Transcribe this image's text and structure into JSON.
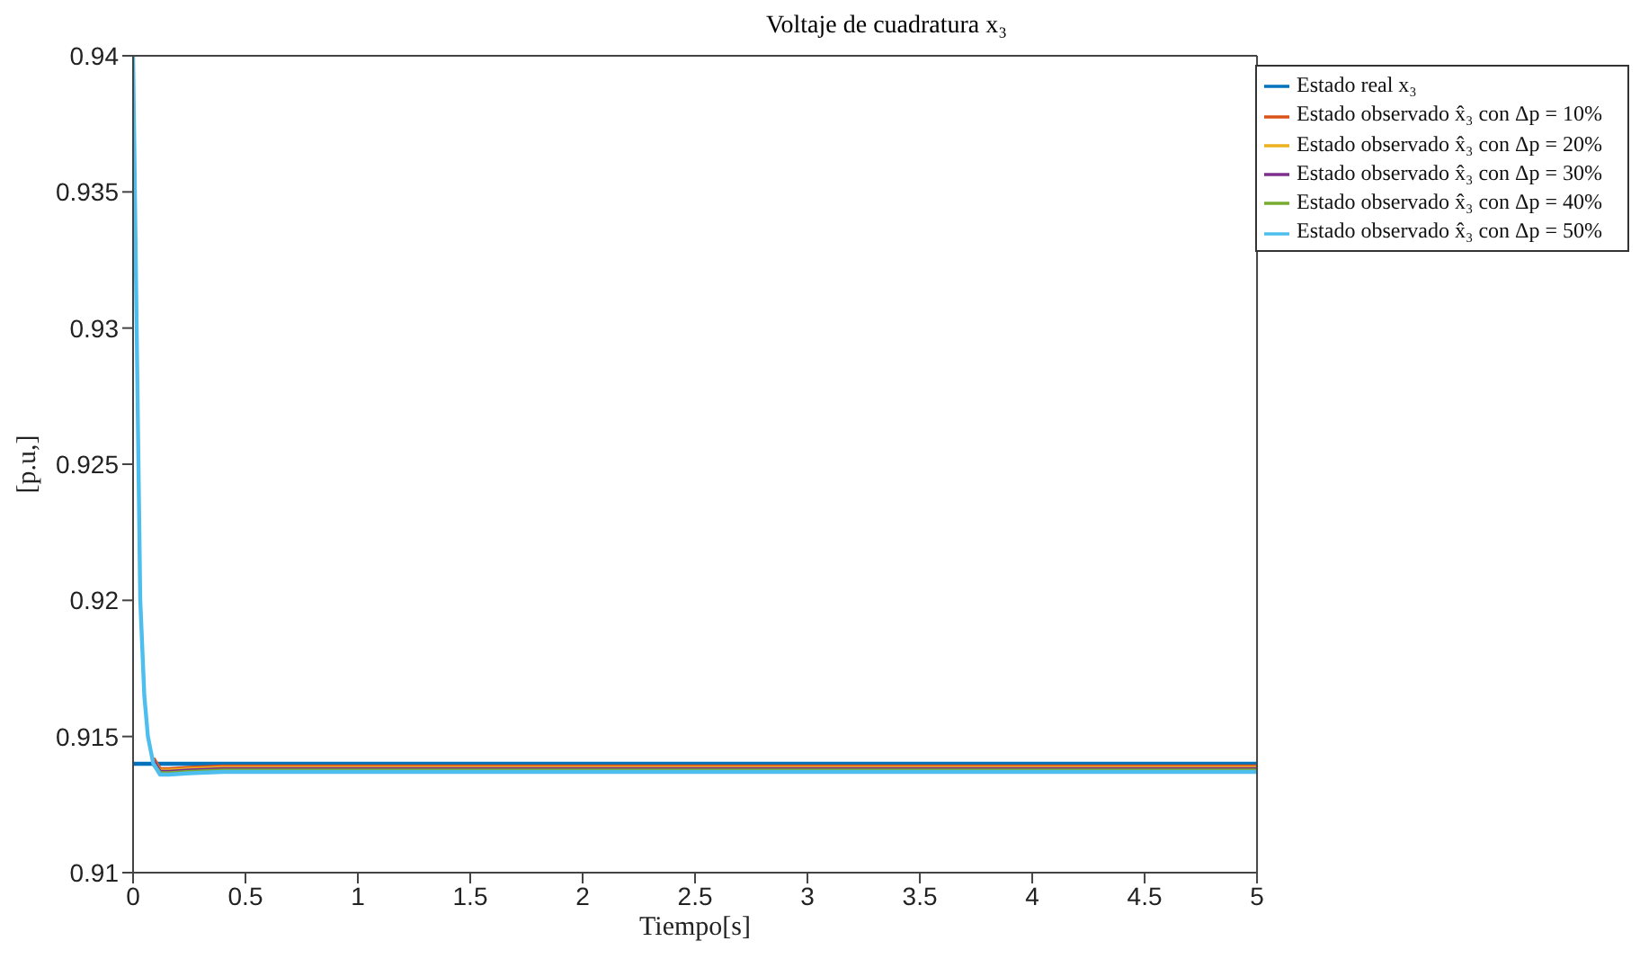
{
  "chart_data": {
    "type": "line",
    "title": "Voltaje de cuadratura x₃",
    "xlabel": "Tiempo[s]",
    "ylabel": "[p.u,]",
    "xlim": [
      0,
      5
    ],
    "xticks": [
      0,
      0.5,
      1,
      1.5,
      2,
      2.5,
      3,
      3.5,
      4,
      4.5,
      5
    ],
    "ylim": [
      0.91,
      0.94
    ],
    "yticks": [
      0.91,
      0.915,
      0.92,
      0.925,
      0.93,
      0.935,
      0.94
    ],
    "legend": "top right",
    "line_style": "solid",
    "marker": "none",
    "series": [
      {
        "name": "Estado real x₃",
        "color": "#0072bd",
        "x": [
          0,
          5
        ],
        "values": [
          0.914,
          0.914
        ]
      },
      {
        "name": "Estado observado x̂₃ con Δp = 10%",
        "color": "#d95319",
        "x": [
          0.09,
          0.12,
          0.16,
          0.25,
          0.4,
          0.7,
          5
        ],
        "values": [
          0.9142,
          0.9138,
          0.9138,
          0.91385,
          0.9139,
          0.9139,
          0.9139
        ]
      },
      {
        "name": "Estado observado x̂₃ con Δp = 20%",
        "color": "#edb120",
        "x": [
          0.09,
          0.12,
          0.16,
          0.25,
          0.4,
          0.7,
          5
        ],
        "values": [
          0.9141,
          0.91375,
          0.91375,
          0.9138,
          0.91385,
          0.91385,
          0.91385
        ]
      },
      {
        "name": "Estado observado x̂₃ con Δp = 30%",
        "color": "#7e2f8e",
        "x": [
          0.09,
          0.12,
          0.16,
          0.25,
          0.4,
          0.7,
          5
        ],
        "values": [
          0.9141,
          0.9137,
          0.9137,
          0.91375,
          0.9138,
          0.9138,
          0.9138
        ]
      },
      {
        "name": "Estado observado x̂₃ con Δp = 40%",
        "color": "#77ac30",
        "x": [
          0.09,
          0.12,
          0.16,
          0.25,
          0.4,
          0.7,
          5
        ],
        "values": [
          0.914,
          0.91365,
          0.91365,
          0.9137,
          0.91375,
          0.91375,
          0.91375
        ]
      },
      {
        "name": "Estado observado x̂₃ con Δp = 50%",
        "color": "#4dbeee",
        "x": [
          0,
          0.005,
          0.016,
          0.032,
          0.05,
          0.066,
          0.09,
          0.12,
          0.16,
          0.25,
          0.4,
          0.7,
          5
        ],
        "values": [
          0.94,
          0.937,
          0.93,
          0.92,
          0.9165,
          0.915,
          0.914,
          0.9136,
          0.9136,
          0.91365,
          0.9137,
          0.9137,
          0.9137
        ]
      }
    ]
  }
}
